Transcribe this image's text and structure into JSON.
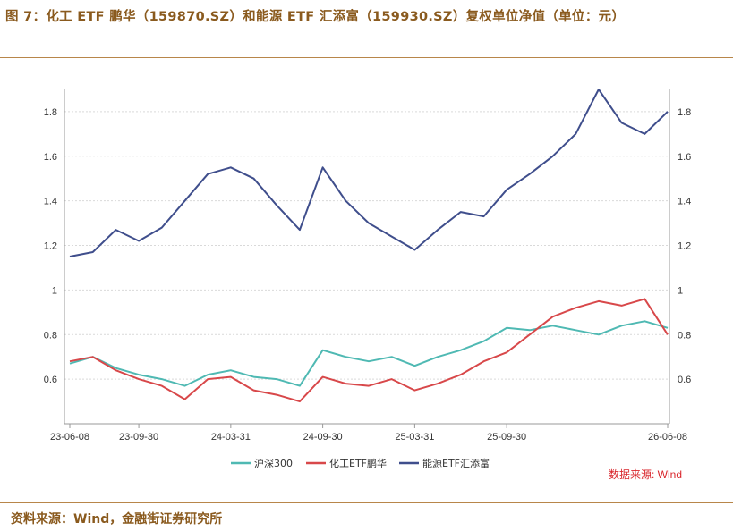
{
  "title": "图 7：化工 ETF 鹏华（159870.SZ）和能源 ETF 汇添富（159930.SZ）复权单位净值（单位：元）",
  "source_note": "数据来源: Wind",
  "footer": "资料来源：Wind，金融街证券研究所",
  "colors": {
    "hs300": "#4fb9b3",
    "chem": "#d8484a",
    "energy": "#3f4e8c",
    "title": "#8a5a1e"
  },
  "chart_data": {
    "type": "line",
    "title": "",
    "xlabel": "",
    "ylabel": "",
    "ylim": [
      0.4,
      1.9
    ],
    "yticks": [
      "0.6",
      "0.8",
      "1",
      "1.2",
      "1.4",
      "1.6",
      "1.8"
    ],
    "xticks": [
      "23-06-08",
      "23-09-30",
      "24-03-31",
      "24-09-30",
      "25-03-31",
      "25-09-30",
      "26-06-08"
    ],
    "legend_position": "bottom",
    "grid": "horizontal dashed",
    "x": [
      "23-06-08",
      "23-08-01",
      "23-09-30",
      "23-11-15",
      "24-01-01",
      "24-02-05",
      "24-03-31",
      "24-05-15",
      "24-07-01",
      "24-08-15",
      "24-09-20",
      "24-10-08",
      "24-11-15",
      "25-01-01",
      "25-02-15",
      "25-03-31",
      "25-05-15",
      "25-07-01",
      "25-08-15",
      "25-09-30",
      "25-11-15",
      "26-01-01",
      "26-02-15",
      "26-03-15",
      "26-04-15",
      "26-05-15",
      "26-06-08"
    ],
    "series": [
      {
        "name": "沪深300",
        "values": [
          0.67,
          0.7,
          0.65,
          0.62,
          0.6,
          0.57,
          0.62,
          0.64,
          0.61,
          0.6,
          0.57,
          0.73,
          0.7,
          0.68,
          0.7,
          0.66,
          0.7,
          0.73,
          0.77,
          0.83,
          0.82,
          0.84,
          0.82,
          0.8,
          0.84,
          0.86,
          0.83
        ]
      },
      {
        "name": "化工ETF鹏华",
        "values": [
          0.68,
          0.7,
          0.64,
          0.6,
          0.57,
          0.51,
          0.6,
          0.61,
          0.55,
          0.53,
          0.5,
          0.61,
          0.58,
          0.57,
          0.6,
          0.55,
          0.58,
          0.62,
          0.68,
          0.72,
          0.8,
          0.88,
          0.92,
          0.95,
          0.93,
          0.96,
          0.8
        ]
      },
      {
        "name": "能源ETF汇添富",
        "values": [
          1.15,
          1.17,
          1.27,
          1.22,
          1.28,
          1.4,
          1.52,
          1.55,
          1.5,
          1.38,
          1.27,
          1.55,
          1.4,
          1.3,
          1.24,
          1.18,
          1.27,
          1.35,
          1.33,
          1.45,
          1.52,
          1.6,
          1.7,
          1.9,
          1.75,
          1.7,
          1.8
        ]
      }
    ]
  }
}
